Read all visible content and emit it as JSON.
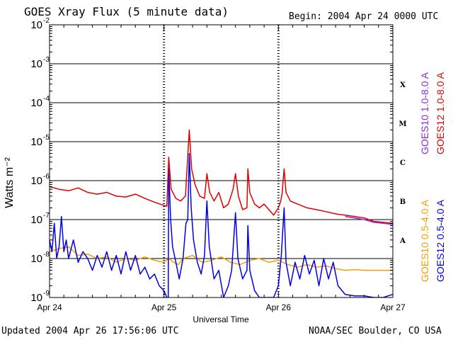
{
  "header": {
    "title": "GOES Xray Flux (5 minute data)",
    "begin": "Begin:  2004 Apr 24 0000 UTC"
  },
  "footer": {
    "updated": "Updated 2004 Apr 26 17:56:06 UTC",
    "credit": "NOAA/SEC Boulder, CO USA"
  },
  "chart_data": {
    "type": "line",
    "title": "GOES Xray Flux (5 minute data)",
    "xlabel": "Universal Time",
    "ylabel": "Watts m⁻²",
    "y_scale": "log",
    "ylim": [
      1e-09,
      0.01
    ],
    "xlim": [
      0,
      72
    ],
    "x_unit": "hours since 2004 Apr 24 0000 UTC",
    "x_ticks": [
      {
        "value": 0,
        "label": "Apr 24"
      },
      {
        "value": 24,
        "label": "Apr 25"
      },
      {
        "value": 48,
        "label": "Apr 26"
      },
      {
        "value": 72,
        "label": "Apr 27"
      }
    ],
    "y_ticks": [
      {
        "value": 1e-09,
        "base": "10",
        "exp": "-9"
      },
      {
        "value": 1e-08,
        "base": "10",
        "exp": "-8"
      },
      {
        "value": 1e-07,
        "base": "10",
        "exp": "-7"
      },
      {
        "value": 1e-06,
        "base": "10",
        "exp": "-6"
      },
      {
        "value": 1e-05,
        "base": "10",
        "exp": "-5"
      },
      {
        "value": 0.0001,
        "base": "10",
        "exp": "-4"
      },
      {
        "value": 0.001,
        "base": "10",
        "exp": "-3"
      },
      {
        "value": 0.01,
        "base": "10",
        "exp": "-2"
      }
    ],
    "flare_classes": [
      {
        "label": "A",
        "value": 3e-08
      },
      {
        "label": "B",
        "value": 3e-07
      },
      {
        "label": "C",
        "value": 3e-06
      },
      {
        "label": "M",
        "value": 3e-05
      },
      {
        "label": "X",
        "value": 0.0003
      }
    ],
    "grid": "horizontal lines at each decade, dotted verticals at day boundaries",
    "legend_placement": "right, rotated vertical",
    "series": [
      {
        "name": "GOES12 1.0-8.0 A",
        "color": "#e00000",
        "points": [
          [
            0,
            7e-07
          ],
          [
            2,
            6e-07
          ],
          [
            4,
            5.5e-07
          ],
          [
            6,
            6.5e-07
          ],
          [
            8,
            5e-07
          ],
          [
            10,
            4.5e-07
          ],
          [
            12,
            5e-07
          ],
          [
            14,
            4e-07
          ],
          [
            16,
            3.8e-07
          ],
          [
            18,
            4.5e-07
          ],
          [
            20,
            3.5e-07
          ],
          [
            22,
            2.8e-07
          ],
          [
            24,
            2.3e-07
          ],
          [
            24.6,
            2.2e-07
          ],
          [
            25,
            4e-06
          ],
          [
            25.5,
            6e-07
          ],
          [
            26.5,
            3.5e-07
          ],
          [
            27.5,
            3e-07
          ],
          [
            28.5,
            4e-07
          ],
          [
            29.3,
            2e-05
          ],
          [
            29.8,
            2e-06
          ],
          [
            30.5,
            8e-07
          ],
          [
            31.5,
            4e-07
          ],
          [
            32.5,
            3.5e-07
          ],
          [
            33,
            1.5e-06
          ],
          [
            33.6,
            5e-07
          ],
          [
            34.5,
            3e-07
          ],
          [
            35.5,
            5e-07
          ],
          [
            36.5,
            2e-07
          ],
          [
            37.5,
            2.5e-07
          ],
          [
            38.5,
            6e-07
          ],
          [
            39,
            1.5e-06
          ],
          [
            39.6,
            4e-07
          ],
          [
            40.5,
            1.8e-07
          ],
          [
            41.4,
            2e-07
          ],
          [
            41.6,
            2e-06
          ],
          [
            42,
            5e-07
          ],
          [
            43,
            2.5e-07
          ],
          [
            44,
            2e-07
          ],
          [
            45,
            2.5e-07
          ],
          [
            46,
            1.8e-07
          ],
          [
            47,
            1.3e-07
          ],
          [
            48,
            2e-07
          ],
          [
            48.5,
            3e-07
          ],
          [
            48.8,
            5e-07
          ],
          [
            49.2,
            2e-06
          ],
          [
            49.6,
            5e-07
          ],
          [
            50.5,
            3e-07
          ],
          [
            52,
            2.5e-07
          ],
          [
            54,
            2e-07
          ],
          [
            56,
            1.8e-07
          ],
          [
            58,
            1.6e-07
          ],
          [
            60,
            1.4e-07
          ],
          [
            62,
            1.3e-07
          ],
          [
            64,
            1.2e-07
          ],
          [
            66,
            1.1e-07
          ],
          [
            68,
            9e-08
          ],
          [
            70,
            8.5e-08
          ],
          [
            72,
            8e-08
          ]
        ]
      },
      {
        "name": "GOES10 1.0-8.0 A",
        "color": "#8a2be2",
        "points": [
          [
            62,
            1.2e-07
          ],
          [
            64,
            1.1e-07
          ],
          [
            66,
            1e-07
          ],
          [
            68,
            8.5e-08
          ],
          [
            70,
            8e-08
          ],
          [
            72,
            7.5e-08
          ]
        ]
      },
      {
        "name": "GOES10 0.5-4.0 A",
        "color": "#f5a000",
        "points": [
          [
            0,
            1.5e-08
          ],
          [
            2,
            1.8e-08
          ],
          [
            4,
            2e-08
          ],
          [
            6,
            1.2e-08
          ],
          [
            8,
            1.3e-08
          ],
          [
            10,
            1e-08
          ],
          [
            12,
            1.1e-08
          ],
          [
            14,
            8e-09
          ],
          [
            16,
            1e-08
          ],
          [
            18,
            9e-09
          ],
          [
            20,
            1.1e-08
          ],
          [
            22,
            9e-09
          ],
          [
            24,
            8e-09
          ],
          [
            25,
            1e-08
          ],
          [
            26,
            8e-09
          ],
          [
            27,
            7e-09
          ],
          [
            28,
            1e-08
          ],
          [
            30,
            1.2e-08
          ],
          [
            32,
            8e-09
          ],
          [
            34,
            9e-09
          ],
          [
            36,
            1.1e-08
          ],
          [
            38,
            8e-09
          ],
          [
            40,
            7e-09
          ],
          [
            42,
            9e-09
          ],
          [
            44,
            1e-08
          ],
          [
            46,
            8e-09
          ],
          [
            48,
            9e-09
          ],
          [
            50,
            7e-09
          ],
          [
            52,
            6e-09
          ],
          [
            54,
            7e-09
          ],
          [
            56,
            6e-09
          ],
          [
            58,
            6.5e-09
          ],
          [
            60,
            5.5e-09
          ],
          [
            62,
            5e-09
          ],
          [
            64,
            5.2e-09
          ],
          [
            66,
            5e-09
          ],
          [
            68,
            5e-09
          ],
          [
            70,
            5e-09
          ],
          [
            72,
            5e-09
          ]
        ]
      },
      {
        "name": "GOES12 0.5-4.0 A",
        "color": "#0000e6",
        "points": [
          [
            0,
            3e-08
          ],
          [
            0.5,
            1.5e-08
          ],
          [
            1,
            8e-08
          ],
          [
            1.5,
            1e-08
          ],
          [
            2,
            2e-08
          ],
          [
            2.5,
            1.2e-07
          ],
          [
            3,
            1.5e-08
          ],
          [
            3.5,
            3e-08
          ],
          [
            4,
            1e-08
          ],
          [
            5,
            3e-08
          ],
          [
            6,
            8e-09
          ],
          [
            7,
            1.5e-08
          ],
          [
            8,
            1e-08
          ],
          [
            9,
            5e-09
          ],
          [
            10,
            1.2e-08
          ],
          [
            11,
            6e-09
          ],
          [
            12,
            1.5e-08
          ],
          [
            13,
            5e-09
          ],
          [
            14,
            1.2e-08
          ],
          [
            15,
            4e-09
          ],
          [
            16,
            1.5e-08
          ],
          [
            17,
            5e-09
          ],
          [
            18,
            1.2e-08
          ],
          [
            19,
            4e-09
          ],
          [
            20,
            6e-09
          ],
          [
            21,
            3e-09
          ],
          [
            22,
            4e-09
          ],
          [
            23,
            2e-09
          ],
          [
            24,
            1.5e-09
          ],
          [
            24.6,
            1e-09
          ],
          [
            24.9,
            1e-09
          ],
          [
            25,
            2e-06
          ],
          [
            25.4,
            1e-07
          ],
          [
            25.8,
            2e-08
          ],
          [
            26.5,
            8e-09
          ],
          [
            27.2,
            3e-09
          ],
          [
            28,
            1e-08
          ],
          [
            28.6,
            8e-08
          ],
          [
            29,
            1e-07
          ],
          [
            29.3,
            5e-06
          ],
          [
            29.7,
            2e-07
          ],
          [
            30.2,
            3e-08
          ],
          [
            31,
            8e-09
          ],
          [
            31.8,
            4e-09
          ],
          [
            32.5,
            1.2e-08
          ],
          [
            33,
            3e-07
          ],
          [
            33.5,
            2e-08
          ],
          [
            34.5,
            3e-09
          ],
          [
            35.5,
            5e-09
          ],
          [
            36.5,
            1e-09
          ],
          [
            37.5,
            2e-09
          ],
          [
            38.2,
            5e-09
          ],
          [
            39,
            1.5e-07
          ],
          [
            39.5,
            1e-08
          ],
          [
            40.5,
            3e-09
          ],
          [
            41.4,
            5e-09
          ],
          [
            41.6,
            7e-08
          ],
          [
            42,
            5e-09
          ],
          [
            43,
            1.5e-09
          ],
          [
            44,
            1e-09
          ],
          [
            45,
            1e-09
          ],
          [
            46,
            1e-09
          ],
          [
            47,
            1e-09
          ],
          [
            48,
            2e-09
          ],
          [
            48.6,
            1.2e-08
          ],
          [
            49.2,
            2e-07
          ],
          [
            49.6,
            8e-09
          ],
          [
            50.5,
            2e-09
          ],
          [
            51.5,
            8e-09
          ],
          [
            52.5,
            3e-09
          ],
          [
            53.5,
            1.2e-08
          ],
          [
            54.5,
            4e-09
          ],
          [
            55.5,
            9e-09
          ],
          [
            56.5,
            2e-09
          ],
          [
            57.5,
            1e-08
          ],
          [
            58.5,
            3e-09
          ],
          [
            59.5,
            8e-09
          ],
          [
            60.5,
            2e-09
          ],
          [
            62,
            1.2e-09
          ],
          [
            64,
            1.1e-09
          ],
          [
            66,
            1.1e-09
          ],
          [
            68,
            1e-09
          ],
          [
            70,
            1e-09
          ],
          [
            71,
            1.1e-09
          ],
          [
            72,
            1.2e-09
          ]
        ]
      }
    ]
  }
}
